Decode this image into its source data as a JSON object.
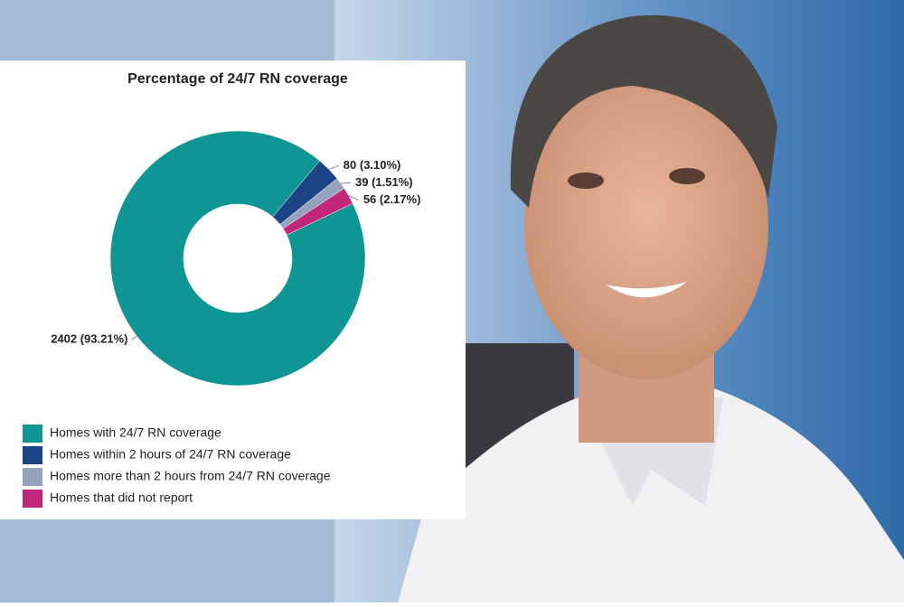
{
  "chart_data": {
    "type": "pie",
    "title": "Percentage of 24/7 RN coverage",
    "categories": [
      "Homes with 24/7 RN coverage",
      "Homes within 2 hours of 24/7 RN coverage",
      "Homes more than 2 hours from 24/7 RN coverage",
      "Homes that did not report"
    ],
    "values": [
      2402,
      80,
      39,
      56
    ],
    "value_labels": [
      "2402 (93.21%)",
      "80 (3.10%)",
      "39 (1.51%)",
      "56 (2.17%)"
    ],
    "colors": [
      "#0e9594",
      "#1b4585",
      "#94a3bb",
      "#c0277a"
    ],
    "donut": true,
    "legend": "bottom"
  }
}
